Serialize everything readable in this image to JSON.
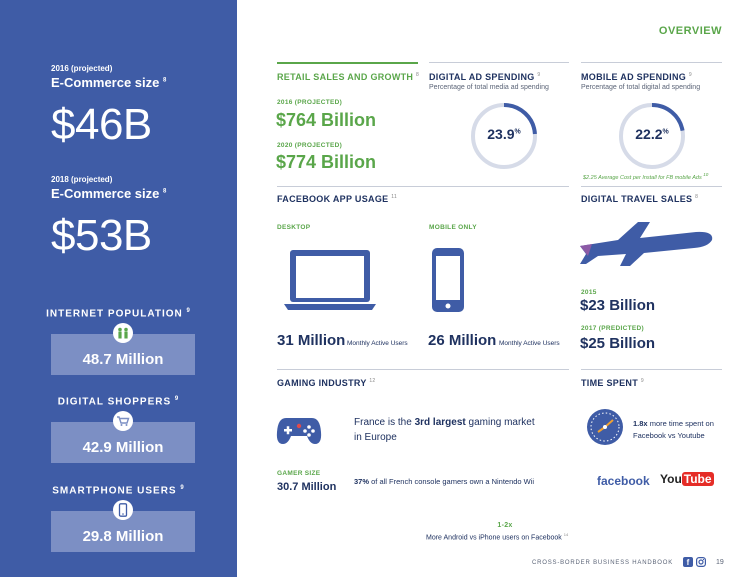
{
  "sidebar": {
    "ecommerce": [
      {
        "projection": "2016 (projected)",
        "title": "E-Commerce size",
        "note": "8",
        "value": "$46B"
      },
      {
        "projection": "2018 (projected)",
        "title": "E-Commerce size",
        "note": "8",
        "value": "$53B"
      }
    ],
    "stats": [
      {
        "label": "INTERNET POPULATION",
        "note": "9",
        "value": "48.7 Million",
        "icon": "people-icon"
      },
      {
        "label": "DIGITAL SHOPPERS",
        "note": "9",
        "value": "42.9 Million",
        "icon": "shopping-cart-icon"
      },
      {
        "label": "SMARTPHONE USERS",
        "note": "9",
        "value": "29.8 Million",
        "icon": "smartphone-icon"
      }
    ]
  },
  "header": {
    "title": "OVERVIEW"
  },
  "retail": {
    "title": "RETAIL SALES AND GROWTH",
    "note": "8",
    "items": [
      {
        "label": "2016 (PROJECTED)",
        "value": "$764 Billion"
      },
      {
        "label": "2020 (PROJECTED)",
        "value": "$774 Billion"
      }
    ]
  },
  "digital_ad": {
    "title": "DIGITAL AD SPENDING",
    "note": "9",
    "subtitle": "Percentage of total media ad spending",
    "value": "23.9",
    "unit": "%",
    "fraction": 0.239
  },
  "mobile_ad": {
    "title": "MOBILE AD SPENDING",
    "note": "9",
    "subtitle": "Percentage of total digital ad spending",
    "value": "22.2",
    "unit": "%",
    "fraction": 0.222,
    "footnote": "$2.25 Average Cost per Install for FB mobile Ads",
    "footnote_ref": "10"
  },
  "facebook_usage": {
    "title": "FACEBOOK APP USAGE",
    "note": "11",
    "desktop": {
      "label": "DESKTOP",
      "value": "31 Million",
      "caption": "Monthly Active Users"
    },
    "mobile": {
      "label": "MOBILE ONLY",
      "value": "26 Million",
      "caption": "Monthly Active Users"
    }
  },
  "travel": {
    "title": "DIGITAL TRAVEL SALES",
    "note": "8",
    "items": [
      {
        "label": "2015",
        "value": "$23 Billion"
      },
      {
        "label": "2017 (PREDICTED)",
        "value": "$25 Billion"
      }
    ]
  },
  "gaming": {
    "title": "GAMING INDUSTRY",
    "note": "12",
    "fact_pre": "France is the ",
    "fact_bold": "3rd largest",
    "fact_post": " gaming market",
    "fact_line2": "in Europe",
    "gamer_label": "GAMER SIZE",
    "gamer_value": "30.7 Million",
    "wii_bold": "37%",
    "wii_text": " of all French console gamers own a Nintendo Wii"
  },
  "time_spent": {
    "title": "TIME SPENT",
    "note": "9",
    "bold": "1.8x",
    "text": " more time spent on",
    "line2": "Facebook vs Youtube",
    "fb_logo": "facebook",
    "yt_you": "You",
    "yt_tube": "Tube"
  },
  "android": {
    "value": "1-2x",
    "text": "More Android vs iPhone users on Facebook",
    "note": "14"
  },
  "footer": {
    "text": "CROSS-BORDER BUSINESS HANDBOOK",
    "page": "19"
  },
  "colors": {
    "navy": "#3f5ca6",
    "green": "#5aa64a",
    "dark": "#1f3260"
  }
}
